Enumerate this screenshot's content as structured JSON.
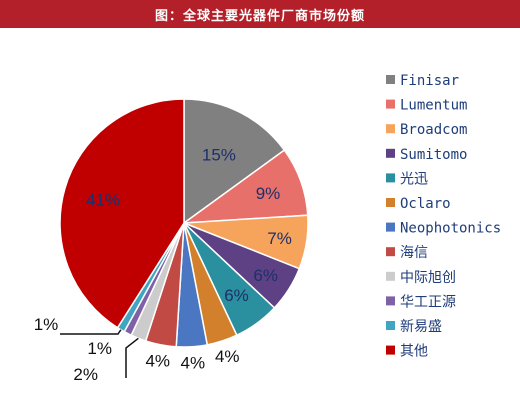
{
  "header": {
    "title": "图：全球主要光器件厂商市场份额"
  },
  "chart_data": {
    "type": "pie",
    "title": "图：全球主要光器件厂商市场份额",
    "slices": [
      {
        "label": "Finisar",
        "value": 15,
        "display": "15%",
        "color": "#808080"
      },
      {
        "label": "Lumentum",
        "value": 9,
        "display": "9%",
        "color": "#e8706a"
      },
      {
        "label": "Broadcom",
        "value": 7,
        "display": "7%",
        "color": "#f6a35c"
      },
      {
        "label": "Sumitomo",
        "value": 6,
        "display": "6%",
        "color": "#5e4185"
      },
      {
        "label": "光迅",
        "value": 6,
        "display": "6%",
        "color": "#2a8f9e"
      },
      {
        "label": "Oclaro",
        "value": 4,
        "display": "4%",
        "color": "#d2802c"
      },
      {
        "label": "Neophotonics",
        "value": 4,
        "display": "4%",
        "color": "#4a76c2"
      },
      {
        "label": "海信",
        "value": 4,
        "display": "4%",
        "color": "#c24a44"
      },
      {
        "label": "中际旭创",
        "value": 2,
        "display": "2%",
        "color": "#cccccc"
      },
      {
        "label": "华工正源",
        "value": 1,
        "display": "1%",
        "color": "#7f61a8"
      },
      {
        "label": "新易盛",
        "value": 1,
        "display": "1%",
        "color": "#3fa5c0"
      },
      {
        "label": "其他",
        "value": 41,
        "display": "41%",
        "color": "#c00000"
      }
    ],
    "legend_position": "right"
  }
}
